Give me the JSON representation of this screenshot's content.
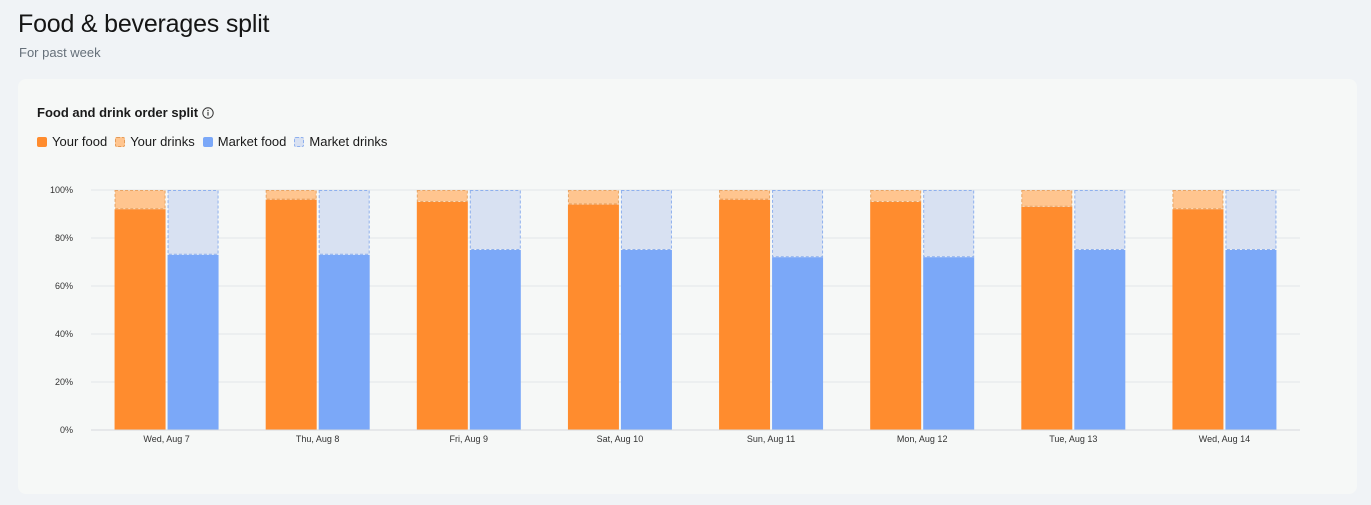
{
  "header": {
    "title": "Food & beverages split",
    "subtitle": "For past week"
  },
  "card": {
    "title": "Food and drink order split",
    "info_icon": "info-icon"
  },
  "legend": [
    {
      "label": "Your food",
      "color": "#ff8c2e",
      "style": "solid"
    },
    {
      "label": "Your drinks",
      "color": "#ffc58f",
      "style": "dashed"
    },
    {
      "label": "Market food",
      "color": "#7ba8f8",
      "style": "solid"
    },
    {
      "label": "Market drinks",
      "color": "#d8e1f2",
      "style": "dashed"
    }
  ],
  "chart_data": {
    "type": "bar",
    "stacked": true,
    "grouped": true,
    "categories": [
      "Wed, Aug 7",
      "Thu, Aug 8",
      "Fri, Aug 9",
      "Sat, Aug 10",
      "Sun, Aug 11",
      "Mon, Aug 12",
      "Tue, Aug 13",
      "Wed, Aug 14"
    ],
    "series": [
      {
        "name": "Your food",
        "stack": "your",
        "values": [
          92,
          96,
          95,
          94,
          96,
          95,
          93,
          92
        ]
      },
      {
        "name": "Your drinks",
        "stack": "your",
        "values": [
          8,
          4,
          5,
          6,
          4,
          5,
          7,
          8
        ]
      },
      {
        "name": "Market food",
        "stack": "market",
        "values": [
          73,
          73,
          75,
          75,
          72,
          72,
          75,
          75
        ]
      },
      {
        "name": "Market drinks",
        "stack": "market",
        "values": [
          27,
          27,
          25,
          25,
          28,
          28,
          25,
          25
        ]
      }
    ],
    "y_ticks": [
      "0%",
      "20%",
      "40%",
      "60%",
      "80%",
      "100%"
    ],
    "ylim": [
      0,
      100
    ],
    "grid": true,
    "legend_position": "top-left",
    "colors": {
      "your_food": "#ff8c2e",
      "your_drinks": "#ffc58f",
      "your_drinks_border": "#e8a464",
      "market_food": "#7ba8f8",
      "market_drinks": "#d8e1f2",
      "market_drinks_border": "#8eb0ee"
    }
  }
}
